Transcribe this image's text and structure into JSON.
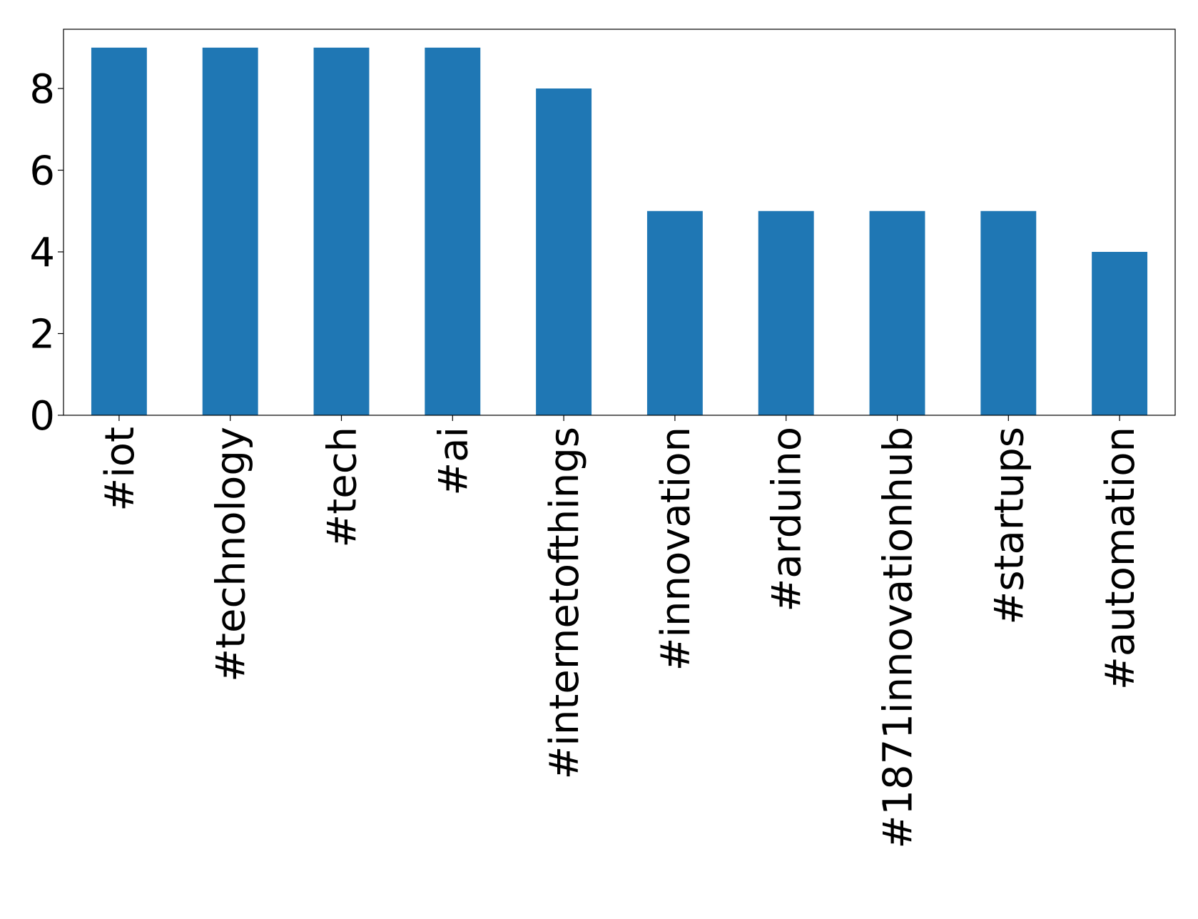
{
  "chart_data": {
    "type": "bar",
    "categories": [
      "#iot",
      "#technology",
      "#tech",
      "#ai",
      "#internetofthings",
      "#innovation",
      "#arduino",
      "#1871innovationhub",
      "#startups",
      "#automation"
    ],
    "values": [
      9,
      9,
      9,
      9,
      8,
      5,
      5,
      5,
      5,
      4
    ],
    "color": "#1f77b4",
    "ylim": [
      0,
      9.45
    ],
    "yticks": [
      0,
      2,
      4,
      6,
      8
    ],
    "grid": false
  }
}
